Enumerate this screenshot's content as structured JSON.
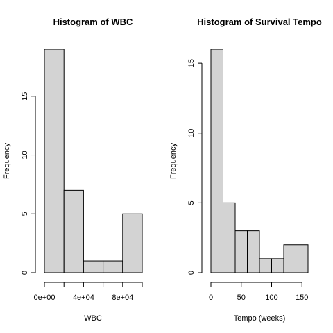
{
  "chart_data": [
    {
      "type": "bar",
      "title": "Histogram of WBC",
      "xlabel": "WBC",
      "ylabel": "Frequency",
      "bins": [
        {
          "from": 0,
          "to": 20000,
          "count": 19
        },
        {
          "from": 20000,
          "to": 40000,
          "count": 7
        },
        {
          "from": 40000,
          "to": 60000,
          "count": 1
        },
        {
          "from": 60000,
          "to": 80000,
          "count": 1
        },
        {
          "from": 80000,
          "to": 100000,
          "count": 5
        }
      ],
      "xlim": [
        0,
        100000
      ],
      "ylim": [
        0,
        19
      ],
      "x_ticks": [
        {
          "value": 0,
          "label": "0e+00"
        },
        {
          "value": 20000,
          "label": ""
        },
        {
          "value": 40000,
          "label": "4e+04"
        },
        {
          "value": 60000,
          "label": ""
        },
        {
          "value": 80000,
          "label": "8e+04"
        },
        {
          "value": 100000,
          "label": ""
        }
      ],
      "y_ticks": [
        {
          "value": 0,
          "label": "0"
        },
        {
          "value": 5,
          "label": "5"
        },
        {
          "value": 10,
          "label": "10"
        },
        {
          "value": 15,
          "label": "15"
        }
      ],
      "bar_color": "#d3d3d3"
    },
    {
      "type": "bar",
      "title": "Histogram of Survival Tempo",
      "xlabel": "Tempo (weeks)",
      "ylabel": "Frequency",
      "bins": [
        {
          "from": 0,
          "to": 20,
          "count": 16
        },
        {
          "from": 20,
          "to": 40,
          "count": 5
        },
        {
          "from": 40,
          "to": 60,
          "count": 3
        },
        {
          "from": 60,
          "to": 80,
          "count": 3
        },
        {
          "from": 80,
          "to": 100,
          "count": 1
        },
        {
          "from": 100,
          "to": 120,
          "count": 1
        },
        {
          "from": 120,
          "to": 140,
          "count": 2
        },
        {
          "from": 140,
          "to": 160,
          "count": 2
        }
      ],
      "xlim": [
        0,
        160
      ],
      "ylim": [
        0,
        16
      ],
      "x_ticks": [
        {
          "value": 0,
          "label": "0"
        },
        {
          "value": 50,
          "label": "50"
        },
        {
          "value": 100,
          "label": "100"
        },
        {
          "value": 150,
          "label": "150"
        }
      ],
      "y_ticks": [
        {
          "value": 0,
          "label": "0"
        },
        {
          "value": 5,
          "label": "5"
        },
        {
          "value": 10,
          "label": "10"
        },
        {
          "value": 15,
          "label": "15"
        }
      ],
      "bar_color": "#d3d3d3"
    }
  ]
}
